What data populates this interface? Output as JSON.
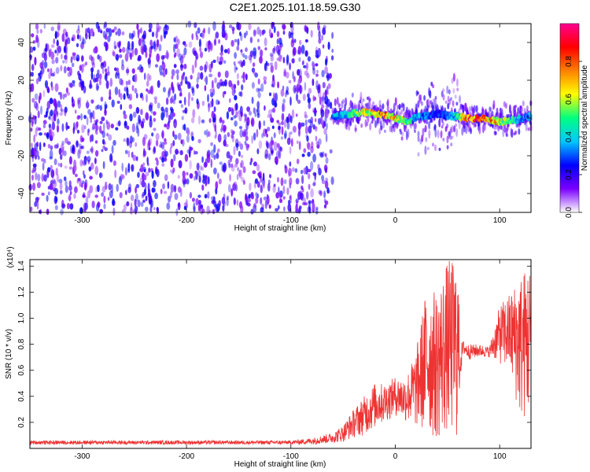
{
  "title": "C2E1.2025.101.18.59.G30",
  "chart_data": [
    {
      "type": "heatmap",
      "xlabel": "Height of straight line (km)",
      "ylabel": "Frequency (Hz)",
      "xlim": [
        -350,
        130
      ],
      "ylim": [
        -50,
        50
      ],
      "xticks": [
        -300,
        -200,
        -100,
        0,
        100
      ],
      "yticks": [
        -40,
        -20,
        0,
        20,
        40
      ],
      "colorbar": {
        "label": "Normalized spectral amplitude",
        "range": [
          0,
          1
        ],
        "ticks": [
          "0.0",
          "0.2",
          "0.4",
          "0.6",
          "0.8"
        ],
        "colors": [
          "#ffffff",
          "#7a00ff",
          "#0000ff",
          "#00c8ff",
          "#00ff80",
          "#ffff00",
          "#ff8000",
          "#ff0000",
          "#ff0090"
        ]
      },
      "noise_region_x": [
        -350,
        -60
      ],
      "ridge": {
        "x": [
          -60,
          -45,
          -30,
          -15,
          0,
          10,
          25,
          40,
          55,
          70,
          85,
          100,
          115,
          130
        ],
        "freq": [
          1,
          2,
          3,
          2,
          0,
          -2,
          1,
          2,
          1,
          0,
          0,
          -2,
          -1,
          1
        ],
        "amplitude": [
          0.4,
          0.5,
          0.75,
          0.9,
          0.85,
          0.6,
          0.4,
          0.3,
          0.4,
          0.95,
          0.95,
          0.8,
          0.5,
          0.4
        ]
      }
    },
    {
      "type": "line",
      "xlabel": "Height of straight line (km)",
      "ylabel": "SNR (10 * v/v)",
      "y_multiplier": "(x10⁴)",
      "xlim": [
        -350,
        130
      ],
      "ylim": [
        0,
        1.45
      ],
      "xticks": [
        -300,
        -200,
        -100,
        0,
        100
      ],
      "yticks": [
        "0.2",
        "0.4",
        "0.6",
        "0.8",
        "1.0",
        "1.2",
        "1.4"
      ],
      "color": "#ee3333",
      "envelope": {
        "x": [
          -350,
          -100,
          -80,
          -60,
          -50,
          -40,
          -30,
          -20,
          -10,
          0,
          10,
          20,
          30,
          40,
          50,
          60,
          62,
          65,
          70,
          80,
          90,
          100,
          110,
          120,
          130
        ],
        "low": [
          0.03,
          0.03,
          0.03,
          0.04,
          0.05,
          0.08,
          0.1,
          0.15,
          0.2,
          0.25,
          0.2,
          0.15,
          0.1,
          0.05,
          0.1,
          0.05,
          0.5,
          0.72,
          0.68,
          0.7,
          0.7,
          0.65,
          0.55,
          0.2,
          0.2
        ],
        "high": [
          0.06,
          0.06,
          0.08,
          0.12,
          0.18,
          0.3,
          0.4,
          0.5,
          0.5,
          0.55,
          0.55,
          0.75,
          1.25,
          1.2,
          1.45,
          1.45,
          0.8,
          0.83,
          0.8,
          0.8,
          0.78,
          1.1,
          1.2,
          1.35,
          1.45
        ]
      }
    }
  ]
}
